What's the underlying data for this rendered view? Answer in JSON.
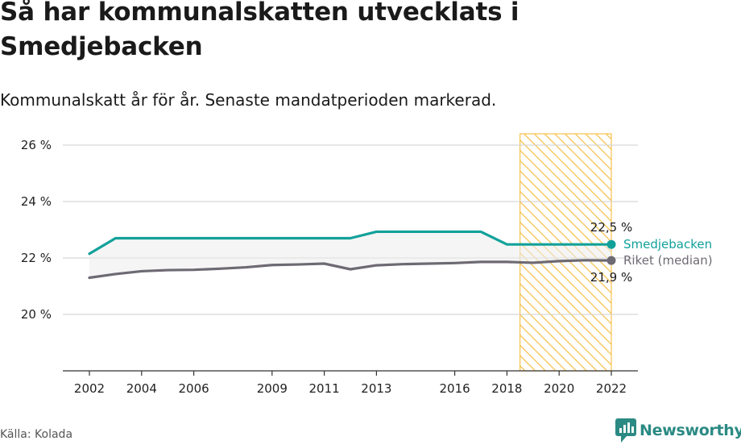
{
  "title": "Så har kommunalskatten utvecklats i Smedjebacken",
  "subtitle": "Kommunalskatt år för år. Senaste mandatperioden markerad.",
  "source": "Källa: Kolada",
  "brand": "Newsworthy",
  "colors": {
    "smedjebacken": "#12a19a",
    "riket": "#6e6a73",
    "highlight": "#f6c14c",
    "grid": "#d6d6d6",
    "axis": "#333333"
  },
  "chart_data": {
    "type": "line",
    "title": "Så har kommunalskatten utvecklats i Smedjebacken",
    "xlabel": "",
    "ylabel": "",
    "ylim": [
      18,
      26.4
    ],
    "xlim": [
      2001,
      2023
    ],
    "yticks": [
      20,
      22,
      24,
      26
    ],
    "ytick_labels": [
      "20 %",
      "22 %",
      "24 %",
      "26 %"
    ],
    "xticks": [
      2002,
      2004,
      2006,
      2009,
      2011,
      2013,
      2016,
      2018,
      2020,
      2022
    ],
    "xtick_labels": [
      "2002",
      "2004",
      "2006",
      "2009",
      "2011",
      "2013",
      "2016",
      "2018",
      "2020",
      "2022"
    ],
    "highlight_period": [
      2018.5,
      2022
    ],
    "series": [
      {
        "name": "Smedjebacken",
        "color_key": "smedjebacken",
        "x": [
          2002,
          2003,
          2004,
          2005,
          2006,
          2007,
          2008,
          2009,
          2010,
          2011,
          2012,
          2013,
          2014,
          2015,
          2016,
          2017,
          2018,
          2019,
          2020,
          2021,
          2022
        ],
        "values": [
          22.15,
          22.7,
          22.7,
          22.7,
          22.7,
          22.7,
          22.7,
          22.7,
          22.7,
          22.7,
          22.7,
          22.93,
          22.93,
          22.93,
          22.93,
          22.93,
          22.48,
          22.48,
          22.48,
          22.48,
          22.48
        ],
        "end_label": "22,5 %"
      },
      {
        "name": "Riket (median)",
        "color_key": "riket",
        "x": [
          2002,
          2003,
          2004,
          2005,
          2006,
          2007,
          2008,
          2009,
          2010,
          2011,
          2012,
          2013,
          2014,
          2015,
          2016,
          2017,
          2018,
          2019,
          2020,
          2021,
          2022
        ],
        "values": [
          21.3,
          21.43,
          21.53,
          21.57,
          21.58,
          21.62,
          21.67,
          21.75,
          21.77,
          21.8,
          21.6,
          21.74,
          21.78,
          21.8,
          21.82,
          21.86,
          21.86,
          21.83,
          21.89,
          21.92,
          21.91
        ],
        "end_label": "21,9 %"
      }
    ]
  }
}
